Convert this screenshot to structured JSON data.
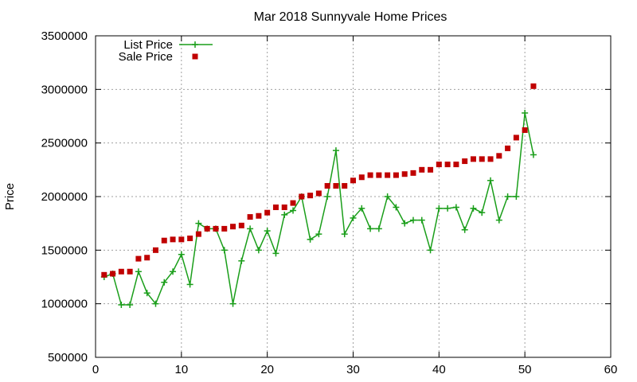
{
  "chart_data": {
    "type": "line",
    "title": "Mar 2018 Sunnyvale Home Prices",
    "xlabel": "",
    "ylabel": "Price",
    "xlim": [
      0,
      60
    ],
    "ylim": [
      500000,
      3500000
    ],
    "xticks": [
      "0",
      "10",
      "20",
      "30",
      "40",
      "50",
      "60"
    ],
    "yticks": [
      "500000",
      "1000000",
      "1500000",
      "2000000",
      "2500000",
      "3000000",
      "3500000"
    ],
    "grid": true,
    "legend_position": "top-left",
    "series": [
      {
        "name": "List Price",
        "style": "line-with-plus-markers",
        "color": "#1a9e1a",
        "x": [
          1,
          2,
          3,
          4,
          5,
          6,
          7,
          8,
          9,
          10,
          11,
          12,
          13,
          14,
          15,
          16,
          17,
          18,
          19,
          20,
          21,
          22,
          23,
          24,
          25,
          26,
          27,
          28,
          29,
          30,
          31,
          32,
          33,
          34,
          35,
          36,
          37,
          38,
          39,
          40,
          41,
          42,
          43,
          44,
          45,
          46,
          47,
          48,
          49,
          50,
          51
        ],
        "values": [
          1250000,
          1280000,
          990000,
          990000,
          1300000,
          1100000,
          1000000,
          1200000,
          1300000,
          1460000,
          1180000,
          1750000,
          1700000,
          1700000,
          1500000,
          1000000,
          1400000,
          1700000,
          1500000,
          1680000,
          1470000,
          1830000,
          1870000,
          2000000,
          1600000,
          1650000,
          2000000,
          2430000,
          1650000,
          1800000,
          1890000,
          1700000,
          1700000,
          2000000,
          1900000,
          1750000,
          1780000,
          1780000,
          1500000,
          1890000,
          1890000,
          1900000,
          1690000,
          1890000,
          1850000,
          2150000,
          1780000,
          2000000,
          2000000,
          2780000,
          2390000
        ]
      },
      {
        "name": "Sale Price",
        "style": "square-markers",
        "color": "#c00000",
        "x": [
          1,
          2,
          3,
          4,
          5,
          6,
          7,
          8,
          9,
          10,
          11,
          12,
          13,
          14,
          15,
          16,
          17,
          18,
          19,
          20,
          21,
          22,
          23,
          24,
          25,
          26,
          27,
          28,
          29,
          30,
          31,
          32,
          33,
          34,
          35,
          36,
          37,
          38,
          39,
          40,
          41,
          42,
          43,
          44,
          45,
          46,
          47,
          48,
          49,
          50,
          51
        ],
        "values": [
          1270000,
          1280000,
          1300000,
          1300000,
          1420000,
          1430000,
          1500000,
          1590000,
          1600000,
          1600000,
          1610000,
          1650000,
          1700000,
          1700000,
          1700000,
          1720000,
          1730000,
          1810000,
          1820000,
          1850000,
          1900000,
          1900000,
          1940000,
          2000000,
          2010000,
          2030000,
          2100000,
          2100000,
          2100000,
          2150000,
          2180000,
          2200000,
          2200000,
          2200000,
          2200000,
          2210000,
          2220000,
          2250000,
          2250000,
          2300000,
          2300000,
          2300000,
          2330000,
          2350000,
          2350000,
          2350000,
          2380000,
          2450000,
          2550000,
          2620000,
          3030000
        ]
      }
    ]
  }
}
